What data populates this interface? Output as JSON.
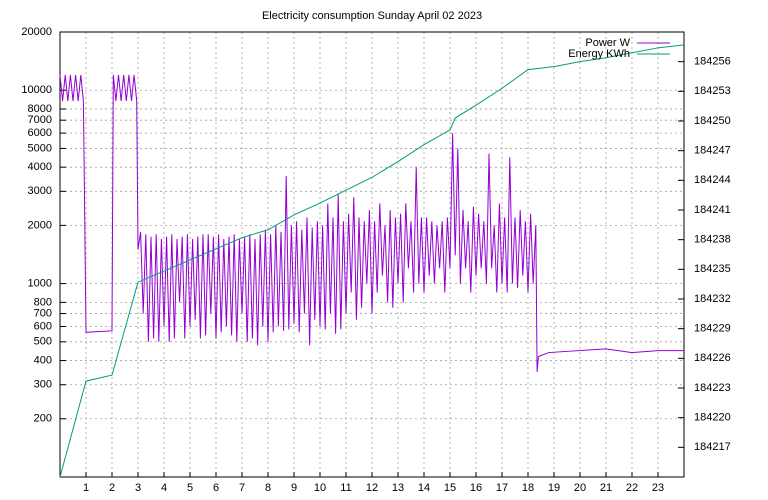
{
  "chart_data": {
    "type": "line",
    "title": "Electricity consumption Sunday April 02 2023",
    "xlim": [
      0,
      24
    ],
    "xticks": [
      1,
      2,
      3,
      4,
      5,
      6,
      7,
      8,
      9,
      10,
      11,
      12,
      13,
      14,
      15,
      16,
      17,
      18,
      19,
      20,
      21,
      22,
      23
    ],
    "ylim": [
      100,
      20000
    ],
    "yscale": "log",
    "yticks": [
      200,
      300,
      400,
      500,
      600,
      700,
      800,
      1000,
      2000,
      3000,
      4000,
      5000,
      6000,
      7000,
      8000,
      10000,
      20000
    ],
    "y2lim": [
      184214,
      184259
    ],
    "y2ticks": [
      184217,
      184220,
      184223,
      184226,
      184229,
      184232,
      184235,
      184238,
      184241,
      184244,
      184247,
      184250,
      184253,
      184256
    ],
    "grid": true,
    "legend": "top-right",
    "series": [
      {
        "name": "Power W",
        "color": "#9400d3",
        "x": [
          0,
          0.1,
          0.2,
          0.3,
          0.4,
          0.5,
          0.6,
          0.7,
          0.8,
          0.9,
          1.0,
          2.0,
          2.05,
          2.15,
          2.25,
          2.35,
          2.45,
          2.55,
          2.65,
          2.75,
          2.85,
          2.95,
          3.0,
          3.1,
          3.2,
          3.3,
          3.4,
          3.5,
          3.6,
          3.7,
          3.8,
          3.9,
          4.0,
          4.1,
          4.2,
          4.3,
          4.4,
          4.5,
          4.6,
          4.7,
          4.8,
          4.9,
          5.0,
          5.1,
          5.2,
          5.3,
          5.4,
          5.5,
          5.6,
          5.7,
          5.8,
          5.9,
          6.0,
          6.1,
          6.2,
          6.3,
          6.4,
          6.5,
          6.6,
          6.7,
          6.8,
          6.9,
          7.0,
          7.1,
          7.2,
          7.3,
          7.4,
          7.5,
          7.6,
          7.7,
          7.8,
          7.9,
          8.0,
          8.1,
          8.2,
          8.3,
          8.4,
          8.5,
          8.6,
          8.7,
          8.8,
          8.9,
          9.0,
          9.1,
          9.2,
          9.3,
          9.4,
          9.5,
          9.6,
          9.7,
          9.8,
          9.9,
          10.0,
          10.1,
          10.2,
          10.3,
          10.4,
          10.5,
          10.6,
          10.7,
          10.8,
          10.9,
          11.0,
          11.1,
          11.2,
          11.3,
          11.4,
          11.5,
          11.6,
          11.7,
          11.8,
          11.9,
          12.0,
          12.1,
          12.2,
          12.3,
          12.4,
          12.5,
          12.6,
          12.7,
          12.8,
          12.9,
          13.0,
          13.1,
          13.2,
          13.3,
          13.4,
          13.5,
          13.6,
          13.7,
          13.8,
          13.9,
          14.0,
          14.1,
          14.2,
          14.3,
          14.4,
          14.5,
          14.6,
          14.7,
          14.8,
          14.9,
          15.0,
          15.1,
          15.2,
          15.3,
          15.4,
          15.5,
          15.6,
          15.7,
          15.8,
          15.9,
          16.0,
          16.1,
          16.2,
          16.3,
          16.4,
          16.5,
          16.6,
          16.7,
          16.8,
          16.9,
          17.0,
          17.1,
          17.2,
          17.3,
          17.4,
          17.5,
          17.6,
          17.7,
          17.8,
          17.9,
          18.0,
          18.1,
          18.2,
          18.3,
          18.35,
          18.4,
          18.8,
          21,
          22,
          23,
          24
        ],
        "values": [
          12000,
          8800,
          12000,
          8800,
          12000,
          8800,
          12000,
          8800,
          12000,
          8800,
          560,
          570,
          12000,
          8800,
          12000,
          8800,
          12000,
          8800,
          12000,
          8800,
          12000,
          8800,
          1500,
          1850,
          700,
          1800,
          500,
          1750,
          520,
          1800,
          500,
          1700,
          600,
          1750,
          500,
          1800,
          520,
          1700,
          800,
          1750,
          520,
          1800,
          600,
          1700,
          650,
          1750,
          520,
          1800,
          540,
          1800,
          700,
          1750,
          520,
          1800,
          560,
          1700,
          600,
          1750,
          540,
          1800,
          500,
          1700,
          700,
          1750,
          500,
          1800,
          520,
          1700,
          480,
          1800,
          600,
          1900,
          500,
          1800,
          560,
          2000,
          600,
          1850,
          570,
          3600,
          580,
          2000,
          620,
          2100,
          560,
          1900,
          700,
          2200,
          480,
          1950,
          650,
          2100,
          600,
          2000,
          580,
          2600,
          700,
          2200,
          550,
          2900,
          580,
          2100,
          700,
          2300,
          900,
          2800,
          650,
          2200,
          750,
          2100,
          1000,
          2400,
          700,
          2100,
          900,
          2600,
          1100,
          2000,
          800,
          2400,
          750,
          2200,
          1000,
          2300,
          800,
          2600,
          1200,
          2100,
          900,
          4000,
          1000,
          2200,
          900,
          2200,
          1100,
          2100,
          1000,
          2000,
          1200,
          2100,
          900,
          2200,
          1200,
          6000,
          1400,
          5000,
          1000,
          2400,
          1200,
          2100,
          900,
          2500,
          1100,
          2300,
          1200,
          2100,
          1000,
          4700,
          1200,
          2000,
          900,
          2600,
          1000,
          2200,
          900,
          4500,
          1000,
          2200,
          950,
          2400,
          1100,
          2100,
          900,
          2300,
          1000,
          2000,
          350,
          420,
          440,
          460,
          440,
          450,
          450
        ]
      },
      {
        "name": "Energy KWh",
        "color": "#009e73",
        "axis": "y2",
        "x": [
          0,
          1,
          2,
          3,
          7,
          8,
          9,
          10,
          11,
          12,
          13,
          14,
          15,
          15.2,
          16,
          17,
          18,
          19,
          20,
          21,
          22,
          23,
          24
        ],
        "values": [
          184214,
          184223.7,
          184224.3,
          184233.7,
          184238.2,
          184239,
          184240.5,
          184241.7,
          184243,
          184244.3,
          184245.9,
          184247.6,
          184249.1,
          184250.3,
          184251.6,
          184253.3,
          184255.2,
          184255.5,
          184256,
          184256.4,
          184256.9,
          184257.4,
          184257.7
        ]
      }
    ]
  }
}
